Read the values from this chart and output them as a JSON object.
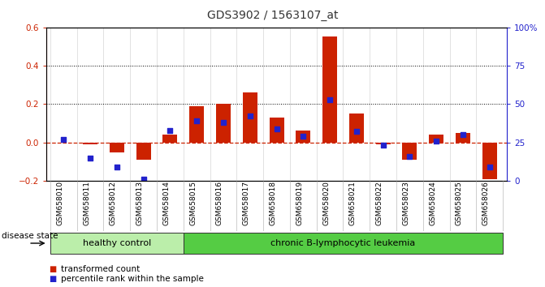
{
  "title": "GDS3902 / 1563107_at",
  "samples": [
    "GSM658010",
    "GSM658011",
    "GSM658012",
    "GSM658013",
    "GSM658014",
    "GSM658015",
    "GSM658016",
    "GSM658017",
    "GSM658018",
    "GSM658019",
    "GSM658020",
    "GSM658021",
    "GSM658022",
    "GSM658023",
    "GSM658024",
    "GSM658025",
    "GSM658026"
  ],
  "bar_values": [
    0.0,
    -0.01,
    -0.05,
    -0.09,
    0.04,
    0.19,
    0.2,
    0.26,
    0.13,
    0.06,
    0.55,
    0.15,
    -0.01,
    -0.09,
    0.04,
    0.05,
    -0.19
  ],
  "blue_values": [
    0.27,
    0.15,
    0.09,
    0.01,
    0.33,
    0.39,
    0.38,
    0.42,
    0.34,
    0.29,
    0.53,
    0.32,
    0.23,
    0.16,
    0.26,
    0.3,
    0.09
  ],
  "bar_color": "#cc2200",
  "dot_color": "#2222cc",
  "left_ylim": [
    -0.2,
    0.6
  ],
  "right_ylim": [
    0,
    1.0
  ],
  "left_yticks": [
    -0.2,
    0.0,
    0.2,
    0.4,
    0.6
  ],
  "right_yticks": [
    0.0,
    0.25,
    0.5,
    0.75,
    1.0
  ],
  "right_yticklabels": [
    "0",
    "25",
    "50",
    "75",
    "100%"
  ],
  "hline_y": [
    0.2,
    0.4
  ],
  "zero_line_color": "#cc2200",
  "n_healthy": 5,
  "n_leukemia": 12,
  "group1_label": "healthy control",
  "group2_label": "chronic B-lymphocytic leukemia",
  "group1_color": "#bbeeaa",
  "group2_color": "#55cc44",
  "disease_label": "disease state",
  "legend1": "transformed count",
  "legend2": "percentile rank within the sample",
  "bg_color": "#ffffff"
}
